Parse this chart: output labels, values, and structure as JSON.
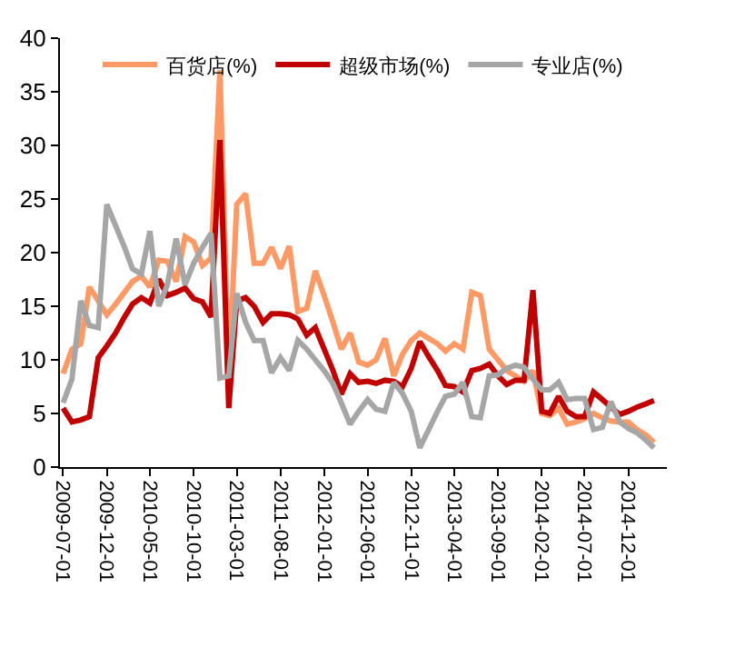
{
  "chart_data": {
    "type": "line",
    "x": [
      "2009-07",
      "2009-08",
      "2009-09",
      "2009-10",
      "2009-11",
      "2009-12",
      "2010-01",
      "2010-02",
      "2010-03",
      "2010-04",
      "2010-05",
      "2010-06",
      "2010-07",
      "2010-08",
      "2010-09",
      "2010-10",
      "2010-11",
      "2010-12",
      "2011-01",
      "2011-02",
      "2011-03",
      "2011-04",
      "2011-05",
      "2011-06",
      "2011-07",
      "2011-08",
      "2011-09",
      "2011-10",
      "2011-11",
      "2011-12",
      "2012-01",
      "2012-02",
      "2012-03",
      "2012-04",
      "2012-05",
      "2012-06",
      "2012-07",
      "2012-08",
      "2012-09",
      "2012-10",
      "2012-11",
      "2012-12",
      "2013-01",
      "2013-02",
      "2013-03",
      "2013-04",
      "2013-05",
      "2013-06",
      "2013-07",
      "2013-08",
      "2013-09",
      "2013-10",
      "2013-11",
      "2013-12",
      "2014-01",
      "2014-02",
      "2014-03",
      "2014-04",
      "2014-05",
      "2014-06",
      "2014-07",
      "2014-08",
      "2014-09",
      "2014-10",
      "2014-11",
      "2014-12",
      "2015-01",
      "2015-02",
      "2015-03"
    ],
    "series": [
      {
        "name": "百货店(%)",
        "color": "#ff9966",
        "values": [
          8.7,
          11,
          11.5,
          16.8,
          15.5,
          14.2,
          15.2,
          16.3,
          17.3,
          17.8,
          16.8,
          19.3,
          19.2,
          17.3,
          21.5,
          21,
          18.8,
          19.5,
          37,
          8.6,
          24.5,
          25.5,
          19,
          19,
          20.5,
          18.5,
          20.6,
          14.5,
          14.8,
          18.3,
          16,
          13.5,
          11,
          12.5,
          9.8,
          9.5,
          10,
          12,
          8.5,
          10.5,
          11.8,
          12.5,
          12,
          11.5,
          10.8,
          11.5,
          11,
          16.3,
          16,
          11,
          10,
          9,
          8.5,
          8,
          9,
          5,
          4.8,
          5.5,
          4,
          4.2,
          4.5,
          5,
          4.6,
          4.3,
          4.2,
          4.2,
          3.5,
          3,
          2.3
        ]
      },
      {
        "name": "超级市场(%)",
        "color": "#c00000",
        "values": [
          5.5,
          4.2,
          4.4,
          4.7,
          10.2,
          11.3,
          12.5,
          14,
          15.2,
          15.8,
          15.3,
          17.5,
          16,
          16.3,
          16.7,
          15.7,
          15.4,
          14,
          30.5,
          5.5,
          15.5,
          15.8,
          15,
          13.5,
          14.3,
          14.3,
          14.2,
          13.8,
          12.3,
          13,
          11,
          9,
          6.8,
          8.7,
          7.9,
          8,
          7.8,
          8.1,
          8,
          7.5,
          9.2,
          11.7,
          10.3,
          9,
          7.6,
          7.5,
          7,
          9,
          9.2,
          9.6,
          8.5,
          7.7,
          8.1,
          8.1,
          16.5,
          5.2,
          5,
          6.6,
          5.2,
          4.7,
          4.7,
          7,
          6.3,
          5.6,
          4.9,
          5.2,
          5.6,
          5.9,
          6.2
        ]
      },
      {
        "name": "专业店(%)",
        "color": "#a6a6a6",
        "values": [
          6,
          8.2,
          15.5,
          13.2,
          13,
          24.5,
          22.5,
          20.5,
          18.5,
          18,
          22,
          15,
          17,
          21.3,
          17,
          19,
          20.5,
          21.8,
          8.3,
          8.5,
          16.2,
          13.5,
          11.8,
          11.8,
          8.8,
          10.2,
          9,
          11.8,
          11,
          10,
          9,
          7.8,
          6,
          4,
          5.2,
          6.3,
          5.4,
          5.2,
          7.9,
          6.9,
          5.2,
          1.8,
          3.5,
          5.2,
          6.6,
          6.8,
          7.9,
          4.7,
          4.6,
          8.5,
          8.6,
          9.2,
          9.5,
          9.3,
          8.2,
          7.2,
          7.2,
          7.9,
          6.3,
          6.4,
          6.4,
          3.5,
          3.7,
          6.1,
          4.2,
          3.6,
          3.2,
          2.5,
          1.8
        ]
      }
    ],
    "xlim": [
      "2009-06-20",
      "2015-04-15"
    ],
    "xticks": [
      "2009-07-01",
      "2009-12-01",
      "2010-05-01",
      "2010-10-01",
      "2011-03-01",
      "2011-08-01",
      "2012-01-01",
      "2012-06-01",
      "2012-11-01",
      "2013-04-01",
      "2013-09-01",
      "2014-02-01",
      "2014-07-01",
      "2014-12-01"
    ],
    "ylim": [
      0,
      40
    ],
    "yticks": [
      0,
      5,
      10,
      15,
      20,
      25,
      30,
      35,
      40
    ],
    "legend": "top",
    "marker": "none",
    "line_style": "solid"
  }
}
